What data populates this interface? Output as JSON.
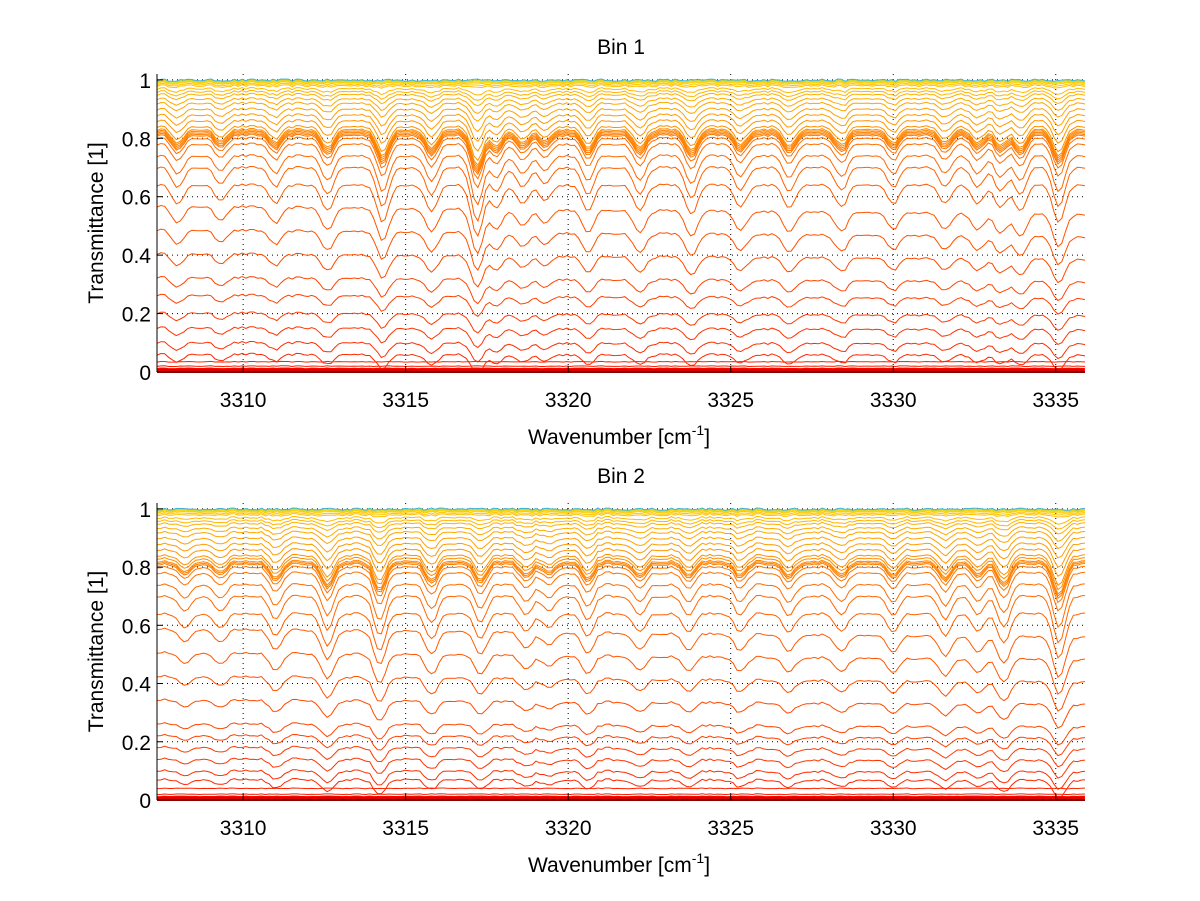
{
  "chart_data": [
    {
      "type": "line",
      "title": "Bin 1",
      "xlabel": "Wavenumber [cm",
      "xlabel_sup": "-1",
      "xlabel_end": "]",
      "ylabel": "Transmittance [1]",
      "xlim": [
        3307.35,
        3335.9
      ],
      "ylim": [
        0,
        1.02
      ],
      "xticks": [
        3310,
        3315,
        3320,
        3325,
        3330,
        3335
      ],
      "xtick_labels": [
        "3310",
        "3315",
        "3320",
        "3325",
        "3330",
        "3335"
      ],
      "yticks": [
        0,
        0.2,
        0.4,
        0.6,
        0.8,
        1
      ],
      "ytick_labels": [
        "0",
        "0.2",
        "0.4",
        "0.6",
        "0.8",
        "1"
      ],
      "grid": "dotted",
      "series_count": 40,
      "colormap": "autumn (red to yellow), top curves tinted green/blue",
      "series_levels": [
        0.0,
        0.002,
        0.005,
        0.01,
        0.02,
        0.035,
        0.06,
        0.1,
        0.15,
        0.2,
        0.26,
        0.32,
        0.4,
        0.48,
        0.56,
        0.64,
        0.7,
        0.74,
        0.78,
        0.8,
        0.81,
        0.815,
        0.82,
        0.825,
        0.83,
        0.84,
        0.86,
        0.88,
        0.9,
        0.92,
        0.935,
        0.95,
        0.96,
        0.97,
        0.98,
        0.985,
        0.99,
        0.993,
        0.996,
        0.999
      ],
      "absorption_lines": [
        3308.0,
        3309.3,
        3311.0,
        3312.6,
        3314.3,
        3315.8,
        3317.2,
        3317.8,
        3318.6,
        3319.3,
        3320.6,
        3322.2,
        3323.8,
        3325.3,
        3326.8,
        3328.4,
        3330.0,
        3331.6,
        3332.6,
        3333.3,
        3333.9,
        3335.1
      ],
      "line_depths": [
        0.1,
        0.08,
        0.1,
        0.14,
        0.2,
        0.14,
        0.28,
        0.12,
        0.1,
        0.08,
        0.14,
        0.14,
        0.16,
        0.12,
        0.12,
        0.12,
        0.1,
        0.1,
        0.1,
        0.12,
        0.14,
        0.2
      ]
    },
    {
      "type": "line",
      "title": "Bin 2",
      "xlabel": "Wavenumber [cm",
      "xlabel_sup": "-1",
      "xlabel_end": "]",
      "ylabel": "Transmittance [1]",
      "xlim": [
        3307.35,
        3335.9
      ],
      "ylim": [
        0,
        1.02
      ],
      "xticks": [
        3310,
        3315,
        3320,
        3325,
        3330,
        3335
      ],
      "xtick_labels": [
        "3310",
        "3315",
        "3320",
        "3325",
        "3330",
        "3335"
      ],
      "yticks": [
        0,
        0.2,
        0.4,
        0.6,
        0.8,
        1
      ],
      "ytick_labels": [
        "0",
        "0.2",
        "0.4",
        "0.6",
        "0.8",
        "1"
      ],
      "grid": "dotted",
      "series_count": 40,
      "colormap": "autumn (red to yellow), top curves tinted green/blue",
      "series_levels": [
        0.0,
        0.002,
        0.005,
        0.01,
        0.02,
        0.04,
        0.07,
        0.1,
        0.14,
        0.18,
        0.22,
        0.26,
        0.34,
        0.42,
        0.5,
        0.58,
        0.64,
        0.7,
        0.74,
        0.78,
        0.8,
        0.81,
        0.815,
        0.82,
        0.83,
        0.84,
        0.86,
        0.88,
        0.9,
        0.92,
        0.935,
        0.95,
        0.96,
        0.97,
        0.98,
        0.985,
        0.99,
        0.993,
        0.996,
        0.999
      ],
      "absorption_lines": [
        3308.2,
        3309.3,
        3311.0,
        3312.6,
        3314.2,
        3315.8,
        3317.3,
        3318.7,
        3319.4,
        3320.6,
        3322.2,
        3323.7,
        3325.3,
        3326.8,
        3328.4,
        3330.0,
        3331.6,
        3332.6,
        3333.4,
        3335.1
      ],
      "line_depths": [
        0.08,
        0.08,
        0.12,
        0.18,
        0.2,
        0.14,
        0.14,
        0.1,
        0.08,
        0.12,
        0.1,
        0.1,
        0.1,
        0.1,
        0.1,
        0.1,
        0.12,
        0.1,
        0.16,
        0.24
      ]
    }
  ]
}
